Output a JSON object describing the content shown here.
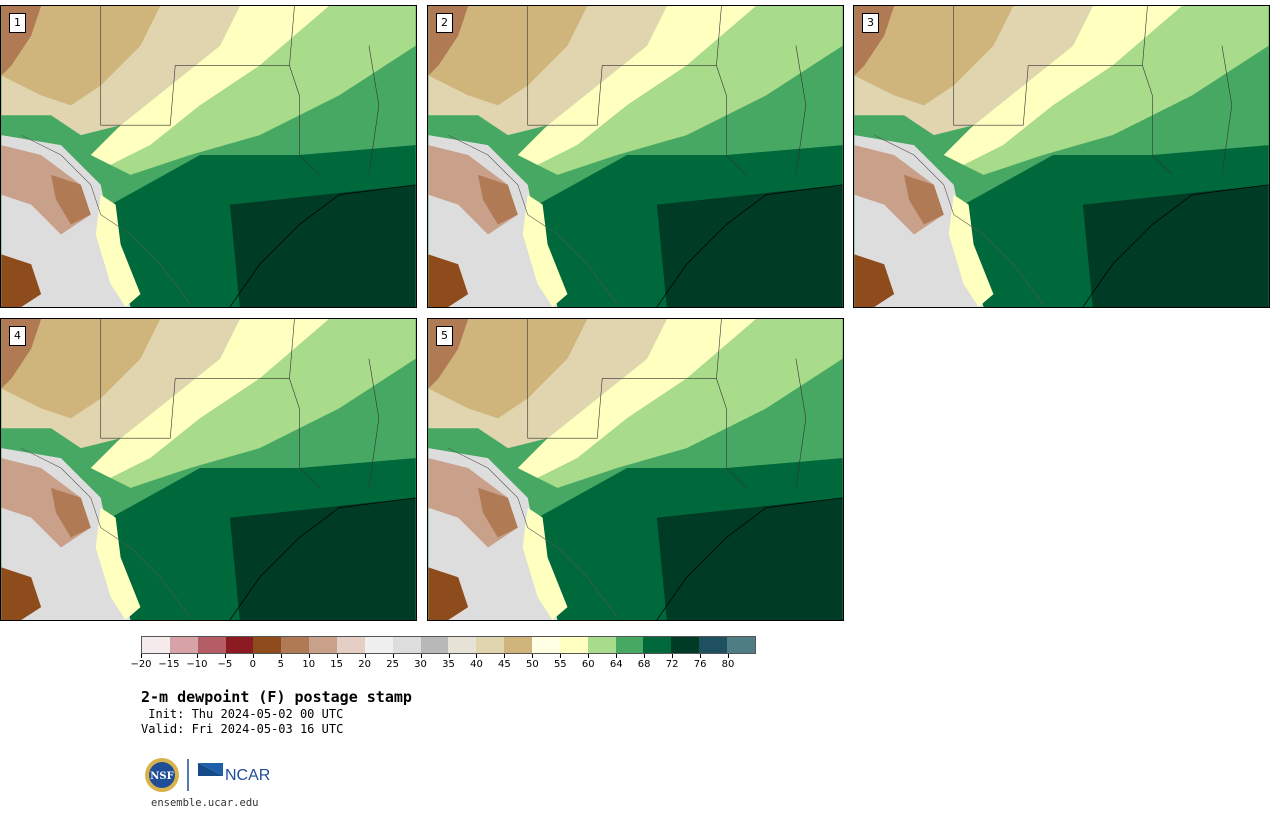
{
  "panels": [
    {
      "label": "1"
    },
    {
      "label": "2"
    },
    {
      "label": "3"
    },
    {
      "label": "4"
    },
    {
      "label": "5"
    }
  ],
  "colorbar": {
    "colors": [
      "#f5ebec",
      "#d8a3a8",
      "#b45d66",
      "#8c1a22",
      "#8e4b1b",
      "#b07a55",
      "#c9a08a",
      "#e5cfc5",
      "#f0f0f0",
      "#dddddd",
      "#b8b8b8",
      "#e6e2d8",
      "#e1d5b0",
      "#cfb57c",
      "#ffffe3",
      "#ffffbf",
      "#a8db8a",
      "#47a863",
      "#00693b",
      "#003b25",
      "#1f5060",
      "#4e7d84"
    ],
    "tick_labels": [
      "−20",
      "−15",
      "−10",
      "−5",
      "0",
      "5",
      "10",
      "15",
      "20",
      "25",
      "30",
      "35",
      "40",
      "45",
      "50",
      "55",
      "60",
      "64",
      "68",
      "72",
      "76",
      "80"
    ]
  },
  "title": "2-m dewpoint (F) postage stamp",
  "init": " Init: Thu 2024-05-02 00 UTC",
  "valid": "Valid: Fri 2024-05-03 16 UTC",
  "logos": {
    "nsf": "NSF",
    "ncar": "NCAR"
  },
  "url": "ensemble.ucar.edu"
}
